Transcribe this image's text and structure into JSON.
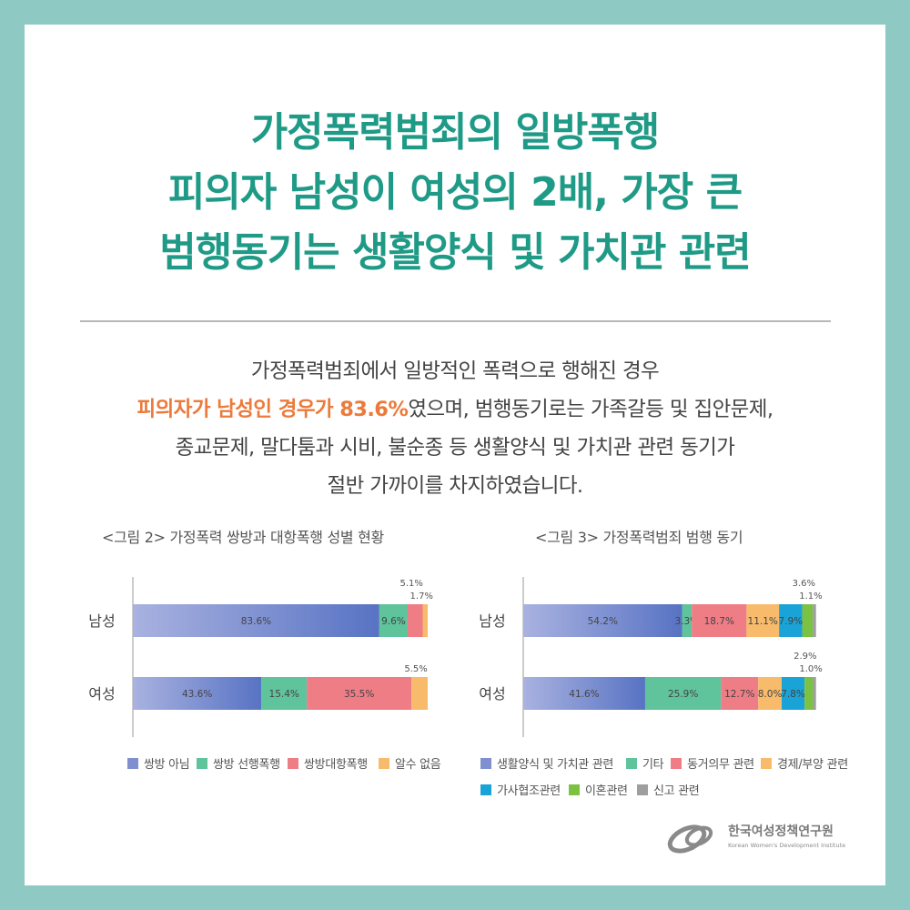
{
  "colors": {
    "background": "#8ec9c4",
    "title": "#1f9a86",
    "highlight": "#ec7a3a"
  },
  "title": {
    "line1": "가정폭력범죄의 일방폭행",
    "line2": "피의자 남성이 여성의 2배, 가장 큰",
    "line3": "범행동기는 생활양식 및 가치관 관련"
  },
  "body": {
    "line1": "가정폭력범죄에서 일방적인 폭력으로 행해진 경우",
    "line2_highlight": "피의자가 남성인 경우가 83.6%",
    "line2_rest": "였으며, 범행동기로는 가족갈등 및 집안문제,",
    "line3": "종교문제, 말다툼과 시비, 불순종 등 생활양식 및 가치관 관련 동기가",
    "line4": "절반 가까이를 차지하였습니다."
  },
  "chart_data": [
    {
      "type": "bar",
      "orientation": "horizontal-stacked",
      "title": "<그림 2> 가정폭력 쌍방과 대항폭행 성별 현황",
      "categories": [
        "남성",
        "여성"
      ],
      "series": [
        {
          "name": "쌍방 아님",
          "color": "#7f8fd0",
          "values": [
            83.6,
            43.6
          ],
          "labels": [
            "83.6%",
            "43.6%"
          ]
        },
        {
          "name": "쌍방 선행폭행",
          "color": "#5fc39c",
          "values": [
            9.6,
            15.4
          ],
          "labels": [
            "9.6%",
            "15.4%"
          ]
        },
        {
          "name": "쌍방대항폭행",
          "color": "#ee7d86",
          "values": [
            5.1,
            35.5
          ],
          "labels": [
            "5.1%",
            "35.5%"
          ]
        },
        {
          "name": "알수 없음",
          "color": "#f7bb6b",
          "values": [
            1.7,
            5.5
          ],
          "labels": [
            "1.7%",
            "5.5%"
          ]
        }
      ],
      "xlim": [
        0,
        100
      ],
      "legend": "bottom"
    },
    {
      "type": "bar",
      "orientation": "horizontal-stacked",
      "title": "<그림 3> 가정폭력범죄 범행 동기",
      "categories": [
        "남성",
        "여성"
      ],
      "series": [
        {
          "name": "생활양식 및 가치관 관련",
          "color": "#7f8fd0",
          "values": [
            54.2,
            41.6
          ],
          "labels": [
            "54.2%",
            "41.6%"
          ]
        },
        {
          "name": "기타",
          "color": "#5fc39c",
          "values": [
            3.3,
            25.9
          ],
          "labels": [
            "3.3%",
            "25.9%"
          ]
        },
        {
          "name": "동거의무 관련",
          "color": "#ee7d86",
          "values": [
            18.7,
            12.7
          ],
          "labels": [
            "18.7%",
            "12.7%"
          ]
        },
        {
          "name": "경제/부양 관련",
          "color": "#f7bb6b",
          "values": [
            11.1,
            8.0
          ],
          "labels": [
            "11.1%",
            "8.0%"
          ]
        },
        {
          "name": "가사협조관련",
          "color": "#1aa3d6",
          "values": [
            7.9,
            7.8
          ],
          "labels": [
            "7.9%",
            "7.8%"
          ]
        },
        {
          "name": "이혼관련",
          "color": "#7cc242",
          "values": [
            3.6,
            2.9
          ],
          "labels": [
            "3.6%",
            "2.9%"
          ]
        },
        {
          "name": "신고 관련",
          "color": "#9e9e9e",
          "values": [
            1.1,
            1.0
          ],
          "labels": [
            "1.1%",
            "1.0%"
          ]
        }
      ],
      "xlim": [
        0,
        100
      ],
      "legend": "bottom"
    }
  ],
  "logo": {
    "korean": "한국여성정책연구원",
    "english": "Korean Women's Development Institute"
  }
}
